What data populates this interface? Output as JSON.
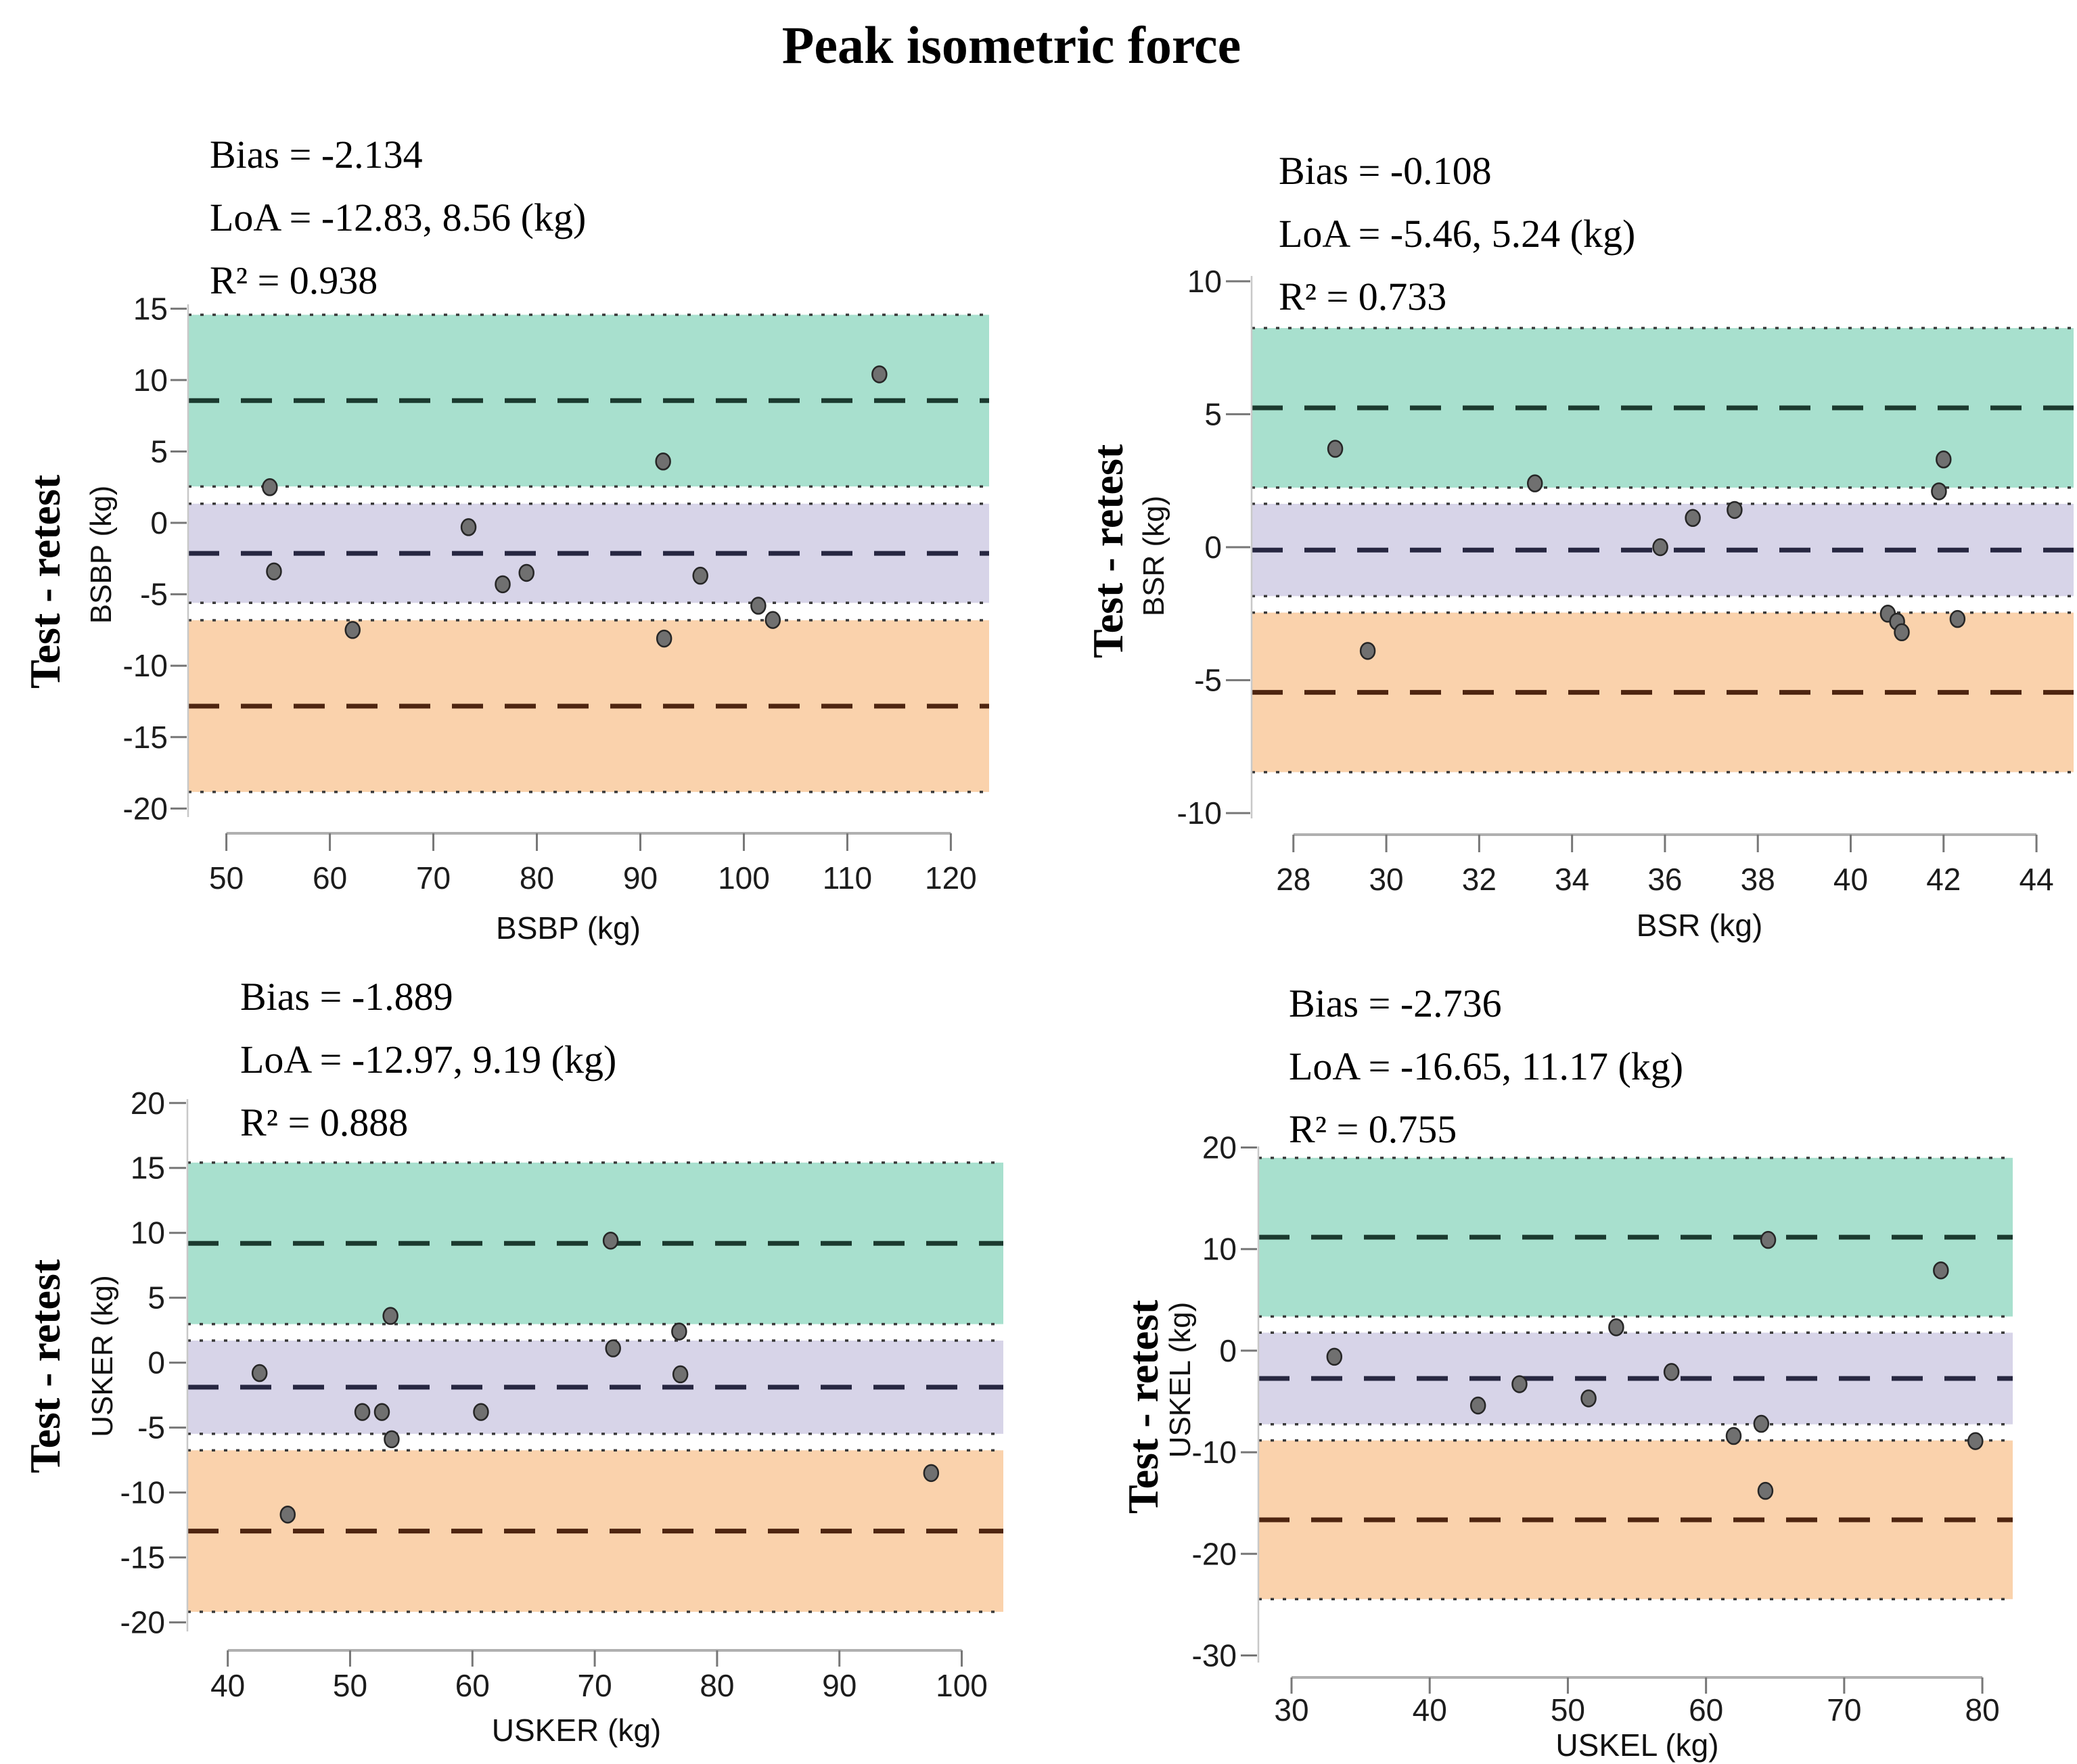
{
  "title": "Peak isometric force",
  "colors": {
    "band_upper": "#A8E0CE",
    "band_mid": "#D7D4E8",
    "band_lower": "#FAD2AC",
    "line_loa_upper": "#1B3A2F",
    "line_bias": "#272741",
    "line_loa_lower": "#4E2510",
    "band_edge_dotted": "#3A3A3A",
    "axis_line": "#B0B0B0",
    "tick_mark": "#777777",
    "tick_text": "#1C1C1C",
    "point_fill": "#707070",
    "point_stroke": "#262626",
    "plot_border": "#C8C8C8"
  },
  "chart_data": [
    {
      "id": "bsbp",
      "type": "scatter",
      "xlabel": "BSBP (kg)",
      "ylabel_inner": "BSBP (kg)",
      "ylabel_outer": "Test - retest",
      "stats": {
        "bias_text": "Bias = -2.134",
        "loa_text": "LoA = -12.83, 8.56 (kg)",
        "r2_text": "R² = 0.938"
      },
      "bias": -2.134,
      "loa_lower": -12.83,
      "loa_upper": 8.56,
      "ci_bias": [
        -5.6,
        1.34
      ],
      "ci_upper": [
        2.55,
        14.57
      ],
      "ci_lower": [
        -18.84,
        -6.82
      ],
      "xlim": [
        46.3,
        123.7
      ],
      "ylim": [
        -20.6,
        15.3
      ],
      "xticks": [
        50,
        60,
        70,
        80,
        90,
        100,
        110,
        120
      ],
      "yticks": [
        15,
        10,
        5,
        0,
        -5,
        -10,
        -15,
        -20
      ],
      "points": [
        [
          54.2,
          2.5
        ],
        [
          54.6,
          -3.4
        ],
        [
          62.2,
          -7.5
        ],
        [
          73.4,
          -0.3
        ],
        [
          76.7,
          -4.3
        ],
        [
          79.0,
          -3.5
        ],
        [
          92.2,
          4.3
        ],
        [
          92.3,
          -8.1
        ],
        [
          95.8,
          -3.7
        ],
        [
          101.4,
          -5.8
        ],
        [
          102.8,
          -6.8
        ],
        [
          113.1,
          10.4
        ]
      ]
    },
    {
      "id": "bsr",
      "type": "scatter",
      "xlabel": "BSR (kg)",
      "ylabel_inner": "BSR (kg)",
      "ylabel_outer": "Test - retest",
      "stats": {
        "bias_text": "Bias = -0.108",
        "loa_text": "LoA = -5.46, 5.24 (kg)",
        "r2_text": "R² = 0.733"
      },
      "bias": -0.108,
      "loa_lower": -5.46,
      "loa_upper": 5.24,
      "ci_bias": [
        -1.84,
        1.63
      ],
      "ci_upper": [
        2.24,
        8.24
      ],
      "ci_lower": [
        -8.46,
        -2.46
      ],
      "xlim": [
        27.1,
        44.8
      ],
      "ylim": [
        -10.2,
        10.2
      ],
      "xticks": [
        28,
        30,
        32,
        34,
        36,
        38,
        40,
        42,
        44
      ],
      "yticks": [
        10,
        5,
        0,
        -5,
        -10
      ],
      "points": [
        [
          28.9,
          3.7
        ],
        [
          29.6,
          -3.9
        ],
        [
          33.2,
          2.4
        ],
        [
          35.9,
          0.0
        ],
        [
          36.6,
          1.1
        ],
        [
          37.5,
          1.4
        ],
        [
          40.8,
          -2.5
        ],
        [
          41.0,
          -2.8
        ],
        [
          41.1,
          -3.2
        ],
        [
          41.9,
          2.1
        ],
        [
          42.0,
          3.3
        ],
        [
          42.3,
          -2.7
        ]
      ]
    },
    {
      "id": "usker",
      "type": "scatter",
      "xlabel": "USKER (kg)",
      "ylabel_inner": "USKER (kg)",
      "ylabel_outer": "Test - retest",
      "stats": {
        "bias_text": "Bias = -1.889",
        "loa_text": "LoA = -12.97, 9.19 (kg)",
        "r2_text": "R² = 0.888"
      },
      "bias": -1.889,
      "loa_lower": -12.97,
      "loa_upper": 9.19,
      "ci_bias": [
        -5.48,
        1.7
      ],
      "ci_upper": [
        2.97,
        15.41
      ],
      "ci_lower": [
        -19.19,
        -6.75
      ],
      "xlim": [
        36.7,
        103.4
      ],
      "ylim": [
        -20.7,
        20.3
      ],
      "xticks": [
        40,
        50,
        60,
        70,
        80,
        90,
        100
      ],
      "yticks": [
        20,
        15,
        10,
        5,
        0,
        -5,
        -10,
        -15,
        -20
      ],
      "points": [
        [
          42.6,
          -0.8
        ],
        [
          44.9,
          -11.7
        ],
        [
          51.0,
          -3.8
        ],
        [
          52.6,
          -3.8
        ],
        [
          53.3,
          3.6
        ],
        [
          53.4,
          -5.9
        ],
        [
          60.7,
          -3.8
        ],
        [
          71.3,
          9.4
        ],
        [
          71.5,
          1.1
        ],
        [
          76.9,
          2.4
        ],
        [
          77.0,
          -0.9
        ],
        [
          97.5,
          -8.5
        ]
      ]
    },
    {
      "id": "uskel",
      "type": "scatter",
      "xlabel": "USKEL (kg)",
      "ylabel_inner": "USKEL (kg)",
      "ylabel_outer": "Test - retest",
      "stats": {
        "bias_text": "Bias = -2.736",
        "loa_text": "LoA = -16.65, 11.17 (kg)",
        "r2_text": "R² = 0.755"
      },
      "bias": -2.736,
      "loa_lower": -16.65,
      "loa_upper": 11.17,
      "ci_bias": [
        -7.25,
        1.77
      ],
      "ci_upper": [
        3.36,
        18.98
      ],
      "ci_lower": [
        -24.46,
        -8.84
      ],
      "xlim": [
        27.6,
        82.2
      ],
      "ylim": [
        -30.7,
        20.1
      ],
      "xticks": [
        30,
        40,
        50,
        60,
        70,
        80
      ],
      "yticks": [
        20,
        10,
        0,
        -10,
        -20,
        -30
      ],
      "points": [
        [
          33.1,
          -0.6
        ],
        [
          43.5,
          -5.4
        ],
        [
          46.5,
          -3.3
        ],
        [
          51.5,
          -4.7
        ],
        [
          53.5,
          2.3
        ],
        [
          57.5,
          -2.1
        ],
        [
          62.0,
          -8.4
        ],
        [
          64.0,
          -7.2
        ],
        [
          64.5,
          10.9
        ],
        [
          64.3,
          -13.8
        ],
        [
          77.0,
          7.9
        ],
        [
          79.5,
          -8.9
        ]
      ]
    }
  ]
}
